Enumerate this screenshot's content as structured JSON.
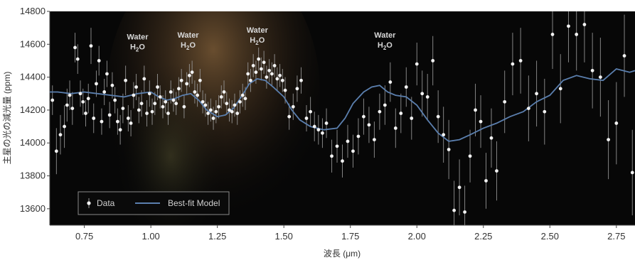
{
  "chart_data": {
    "type": "scatter",
    "xlabel": "波長 (μm)",
    "ylabel": "主星の光の減光量 (ppm)",
    "xlim": [
      0.62,
      2.82
    ],
    "ylim": [
      13500,
      14800
    ],
    "x_ticks": [
      "0.75",
      "1.00",
      "1.25",
      "1.50",
      "1.75",
      "2.00",
      "2.25",
      "2.50",
      "2.75"
    ],
    "x_tick_values": [
      0.75,
      1.0,
      1.25,
      1.5,
      1.75,
      2.0,
      2.25,
      2.5,
      2.75
    ],
    "y_ticks": [
      "13600",
      "13800",
      "14000",
      "14200",
      "14400",
      "14600",
      "14800"
    ],
    "y_tick_values": [
      13600,
      13800,
      14000,
      14200,
      14400,
      14600,
      14800
    ],
    "grid": false,
    "legend_position": "bottom-left",
    "legend": {
      "data_label": "Data",
      "model_label": "Best-fit Model"
    },
    "annotations": [
      {
        "title": "Water",
        "formula": "H",
        "sub": "2",
        "tail": "O",
        "x": 0.95,
        "y": 14630
      },
      {
        "title": "Water",
        "formula": "H",
        "sub": "2",
        "tail": "O",
        "x": 1.14,
        "y": 14640
      },
      {
        "title": "Water",
        "formula": "H",
        "sub": "2",
        "tail": "O",
        "x": 1.4,
        "y": 14670
      },
      {
        "title": "Water",
        "formula": "H",
        "sub": "2",
        "tail": "O",
        "x": 1.88,
        "y": 14640
      }
    ],
    "colors": {
      "data": "#f2f2f2",
      "errorbar": "#9a9a9a",
      "model": "#5b7fae",
      "background": "#070707"
    },
    "series": [
      {
        "name": "Data",
        "x": [
          0.63,
          0.645,
          0.66,
          0.675,
          0.685,
          0.695,
          0.705,
          0.715,
          0.725,
          0.735,
          0.745,
          0.755,
          0.765,
          0.775,
          0.785,
          0.795,
          0.805,
          0.815,
          0.825,
          0.835,
          0.845,
          0.855,
          0.865,
          0.875,
          0.885,
          0.895,
          0.905,
          0.915,
          0.925,
          0.935,
          0.945,
          0.955,
          0.965,
          0.975,
          0.985,
          0.995,
          1.005,
          1.015,
          1.025,
          1.035,
          1.045,
          1.055,
          1.065,
          1.075,
          1.085,
          1.095,
          1.105,
          1.115,
          1.125,
          1.135,
          1.145,
          1.155,
          1.165,
          1.175,
          1.185,
          1.195,
          1.205,
          1.215,
          1.225,
          1.235,
          1.245,
          1.255,
          1.265,
          1.275,
          1.285,
          1.295,
          1.305,
          1.315,
          1.325,
          1.335,
          1.345,
          1.355,
          1.365,
          1.375,
          1.385,
          1.395,
          1.405,
          1.415,
          1.425,
          1.435,
          1.445,
          1.455,
          1.465,
          1.475,
          1.485,
          1.495,
          1.505,
          1.52,
          1.535,
          1.55,
          1.565,
          1.585,
          1.6,
          1.615,
          1.63,
          1.645,
          1.66,
          1.68,
          1.7,
          1.72,
          1.74,
          1.76,
          1.78,
          1.8,
          1.82,
          1.84,
          1.86,
          1.88,
          1.9,
          1.92,
          1.94,
          1.96,
          1.98,
          2.0,
          2.02,
          2.04,
          2.06,
          2.08,
          2.1,
          2.12,
          2.14,
          2.16,
          2.18,
          2.2,
          2.22,
          2.24,
          2.26,
          2.28,
          2.3,
          2.33,
          2.36,
          2.39,
          2.42,
          2.45,
          2.48,
          2.51,
          2.54,
          2.57,
          2.6,
          2.63,
          2.66,
          2.69,
          2.72,
          2.75,
          2.78,
          2.81
        ],
        "y": [
          14260,
          13950,
          14050,
          14100,
          14230,
          14290,
          14210,
          14580,
          14510,
          14300,
          14250,
          14180,
          14270,
          14590,
          14150,
          14360,
          14500,
          14130,
          14310,
          14420,
          14170,
          14350,
          14260,
          14130,
          14080,
          14210,
          14380,
          14150,
          14120,
          14290,
          14340,
          14200,
          14240,
          14390,
          14180,
          14300,
          14190,
          14240,
          14340,
          14280,
          14220,
          14250,
          14180,
          14310,
          14260,
          14240,
          14330,
          14380,
          14220,
          14360,
          14410,
          14430,
          14310,
          14290,
          14380,
          14250,
          14230,
          14180,
          14200,
          14150,
          14190,
          14220,
          14280,
          14310,
          14240,
          14200,
          14190,
          14230,
          14180,
          14250,
          14290,
          14270,
          14420,
          14380,
          14470,
          14430,
          14510,
          14450,
          14490,
          14400,
          14440,
          14420,
          14470,
          14390,
          14410,
          14380,
          14320,
          14160,
          14220,
          14330,
          14380,
          14150,
          14190,
          14100,
          14080,
          14060,
          14120,
          13920,
          13980,
          13890,
          14010,
          13950,
          14040,
          14160,
          14110,
          14020,
          14190,
          14230,
          14370,
          14090,
          14180,
          14340,
          14150,
          14480,
          14300,
          14280,
          14500,
          14160,
          14050,
          13960,
          13590,
          13730,
          13580,
          13920,
          14200,
          14130,
          13770,
          14030,
          13830,
          14250,
          14480,
          14500,
          14210,
          14300,
          14190,
          14660,
          14330,
          14710,
          14660,
          14720,
          14440,
          14400,
          14020,
          14120,
          14530,
          13820
        ],
        "err": [
          90,
          140,
          120,
          130,
          100,
          90,
          100,
          90,
          90,
          80,
          80,
          80,
          90,
          110,
          90,
          80,
          90,
          80,
          80,
          80,
          80,
          80,
          80,
          80,
          90,
          90,
          90,
          80,
          80,
          80,
          80,
          80,
          80,
          80,
          80,
          80,
          80,
          70,
          80,
          70,
          70,
          70,
          70,
          70,
          70,
          70,
          70,
          70,
          70,
          70,
          70,
          70,
          70,
          70,
          70,
          70,
          70,
          70,
          70,
          70,
          70,
          70,
          70,
          70,
          70,
          70,
          70,
          70,
          70,
          70,
          70,
          70,
          70,
          70,
          70,
          70,
          70,
          70,
          70,
          70,
          70,
          70,
          70,
          70,
          70,
          70,
          80,
          80,
          80,
          80,
          80,
          80,
          90,
          90,
          90,
          90,
          90,
          100,
          100,
          100,
          100,
          100,
          110,
          110,
          110,
          110,
          110,
          120,
          120,
          120,
          120,
          120,
          130,
          130,
          140,
          140,
          150,
          160,
          170,
          180,
          180,
          170,
          160,
          160,
          160,
          160,
          170,
          180,
          180,
          190,
          190,
          200,
          200,
          200,
          200,
          210,
          210,
          220,
          220,
          230,
          230,
          240,
          240,
          250,
          250,
          260
        ]
      },
      {
        "name": "Best-fit Model",
        "x": [
          0.62,
          0.65,
          0.7,
          0.75,
          0.8,
          0.85,
          0.9,
          0.95,
          1.0,
          1.03,
          1.06,
          1.09,
          1.12,
          1.15,
          1.18,
          1.21,
          1.25,
          1.28,
          1.31,
          1.34,
          1.37,
          1.4,
          1.43,
          1.46,
          1.5,
          1.53,
          1.56,
          1.6,
          1.65,
          1.7,
          1.73,
          1.76,
          1.8,
          1.83,
          1.86,
          1.89,
          1.92,
          1.96,
          2.0,
          2.04,
          2.08,
          2.12,
          2.16,
          2.2,
          2.25,
          2.3,
          2.35,
          2.4,
          2.45,
          2.5,
          2.55,
          2.6,
          2.65,
          2.7,
          2.75,
          2.8,
          2.82
        ],
        "y": [
          14310,
          14310,
          14300,
          14310,
          14300,
          14290,
          14280,
          14300,
          14310,
          14280,
          14260,
          14270,
          14290,
          14300,
          14260,
          14200,
          14160,
          14170,
          14210,
          14280,
          14360,
          14390,
          14380,
          14340,
          14280,
          14200,
          14140,
          14100,
          14080,
          14090,
          14150,
          14240,
          14310,
          14340,
          14350,
          14310,
          14290,
          14280,
          14230,
          14140,
          14060,
          14010,
          14020,
          14050,
          14090,
          14120,
          14160,
          14190,
          14250,
          14290,
          14380,
          14410,
          14390,
          14380,
          14450,
          14430,
          14440
        ]
      }
    ]
  }
}
